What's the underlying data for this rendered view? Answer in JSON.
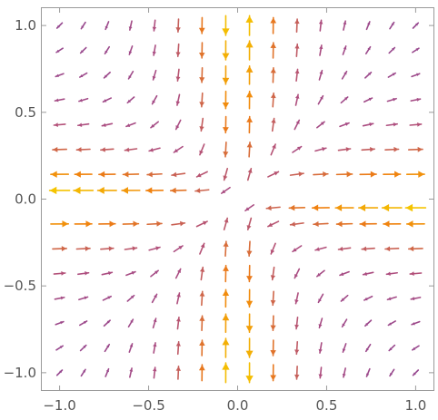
{
  "chart_data": {
    "type": "vector_field",
    "title": "",
    "xlabel": "",
    "ylabel": "",
    "xlim": [
      -1.1,
      1.1
    ],
    "ylim": [
      -1.1,
      1.1
    ],
    "grid": false,
    "x_ticks": [
      -1.0,
      -0.5,
      0.0,
      0.5,
      1.0
    ],
    "x_tick_labels": [
      "−1.0",
      "−0.5",
      "0.0",
      "0.5",
      "1.0"
    ],
    "y_ticks": [
      -1.0,
      -0.5,
      0.0,
      0.5,
      1.0
    ],
    "y_tick_labels": [
      "−1.0",
      "−0.5",
      "0.0",
      "0.5",
      "1.0"
    ],
    "field": {
      "u": "sign(y)*(x/(y^2+0.02))",
      "v": "sign(x)*(y/(x^2+0.02))",
      "grid_x": [
        -1.0,
        -0.8667,
        -0.7333,
        -0.6,
        -0.4667,
        -0.3333,
        -0.2,
        -0.0667,
        0.0667,
        0.2,
        0.3333,
        0.4667,
        0.6,
        0.7333,
        0.8667,
        1.0
      ],
      "grid_y": [
        -1.0,
        -0.8571,
        -0.7143,
        -0.5714,
        -0.4286,
        -0.2857,
        -0.1429,
        0.0,
        0.1429,
        0.2857,
        0.4286,
        0.5714,
        0.7143,
        0.8571,
        1.0
      ],
      "row_offset_y": 0.05
    },
    "color_scale": {
      "low": "#7b3fa0",
      "mid": "#b04f7e",
      "high": "#f07f10",
      "peak": "#f5c400"
    }
  }
}
